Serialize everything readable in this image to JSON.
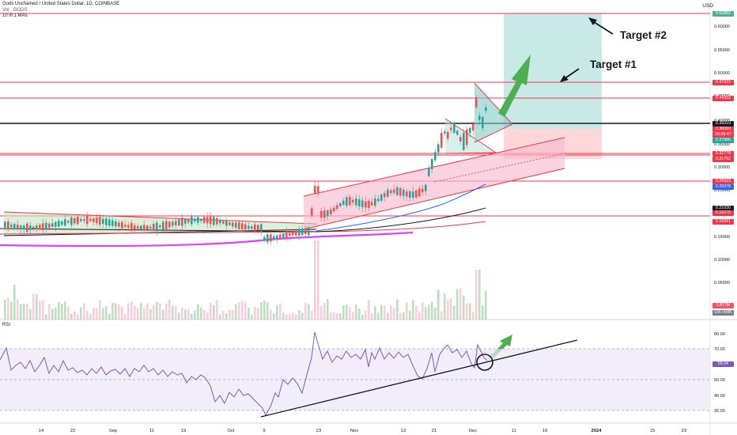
{
  "header": {
    "symbol_line": "Gods Unchained / United States Dollar, 1D, COINBASE",
    "volume_line": "Vol · GODS",
    "ma_line": "10 in 1 MAs"
  },
  "currency_button": "USD",
  "annotations": {
    "target1": "Target #1",
    "target2": "Target #2"
  },
  "rsi": {
    "label": "RSI",
    "value_tag": "59.34",
    "ticks": [
      "80.00",
      "70.00",
      "60.00",
      "50.00",
      "40.00",
      "30.00"
    ]
  },
  "price_axis": {
    "ticks": [
      "0.60000",
      "0.55000",
      "0.50000",
      "0.45000",
      "0.40000",
      "0.35000",
      "0.30000",
      "0.25000",
      "0.20000",
      "0.15000",
      "0.10000",
      "0.05000"
    ],
    "tags": [
      {
        "label": "0.62892",
        "color": "#4caf93"
      },
      {
        "label": "0.47922",
        "color": "#f23645"
      },
      {
        "label": "0.44302",
        "color": "#f23645"
      },
      {
        "label": "0.39310",
        "color": "#131722"
      },
      {
        "label": "0.38069",
        "color": "#f23645"
      },
      {
        "label": "09:08:47",
        "color": "#f23645"
      },
      {
        "label": "0.37986",
        "color": "#26a69a"
      },
      {
        "label": "0.32778",
        "color": "#f23645"
      },
      {
        "label": "0.31752",
        "color": "#f23645"
      },
      {
        "label": "0.26923",
        "color": "#f23645"
      },
      {
        "label": "0.25978",
        "color": "#2962ff"
      },
      {
        "label": "0.21030",
        "color": "#131722"
      },
      {
        "label": "0.19276",
        "color": "#f23645"
      },
      {
        "label": "0.18391",
        "color": "#f23645"
      },
      {
        "label": "1.817M",
        "color": "#f7525f"
      },
      {
        "label": "936.098K",
        "color": "#787b86"
      }
    ]
  },
  "time_axis": [
    "14",
    "22",
    "Sep",
    "11",
    "19",
    "Oct",
    "9",
    "23",
    "Nov",
    "13",
    "21",
    "Dec",
    "11",
    "19",
    "2024",
    "15",
    "23"
  ],
  "colors": {
    "up": "#26a69a",
    "down": "#ef5350",
    "arrow": "#4caf50",
    "rsi_line": "#7e57c2",
    "fan_ma": "#e040fb"
  }
}
